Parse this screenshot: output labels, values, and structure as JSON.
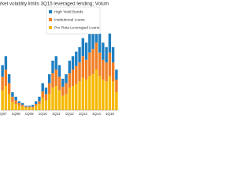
{
  "chart_data": {
    "type": "stacked_bar",
    "title": "rket volatility limits 3Q15 leveraged lending; Volum",
    "categories": [
      "1Q07",
      null,
      null,
      null,
      "1Q08",
      null,
      null,
      null,
      "1Q09",
      null,
      null,
      null,
      "1Q10",
      null,
      null,
      null,
      "1Q11",
      null,
      null,
      null,
      "1Q12",
      null,
      null,
      null,
      "1Q13",
      null,
      null,
      null,
      "1Q14",
      null,
      null,
      null,
      "1Q15",
      null,
      null
    ],
    "series": [
      {
        "name": "Pro Rata Leveraged Loans",
        "color": "#f5b800",
        "values": [
          22,
          27,
          18,
          9,
          7,
          5,
          4,
          3,
          3,
          3,
          5,
          7,
          14,
          11,
          18,
          25,
          27,
          22,
          16,
          18,
          25,
          27,
          29,
          32,
          36,
          34,
          38,
          40,
          45,
          38,
          34,
          32,
          38,
          32,
          20
        ]
      },
      {
        "name": "Institutional Loans",
        "color": "#f07e26",
        "values": [
          15,
          18,
          12,
          6,
          4,
          3,
          2,
          1,
          1,
          1,
          2,
          3,
          7,
          7,
          12,
          16,
          18,
          15,
          10,
          12,
          16,
          18,
          20,
          21,
          24,
          22,
          26,
          28,
          30,
          26,
          22,
          21,
          26,
          21,
          14
        ]
      },
      {
        "name": "High Yield Bonds",
        "color": "#1f7fc1",
        "values": [
          13,
          15,
          10,
          5,
          4,
          2,
          2,
          1,
          1,
          2,
          3,
          5,
          9,
          7,
          10,
          14,
          15,
          13,
          9,
          10,
          14,
          15,
          16,
          17,
          20,
          19,
          21,
          22,
          25,
          21,
          19,
          17,
          21,
          17,
          11
        ]
      }
    ],
    "ylim": [
      0,
      110
    ],
    "legend": "top-right"
  }
}
